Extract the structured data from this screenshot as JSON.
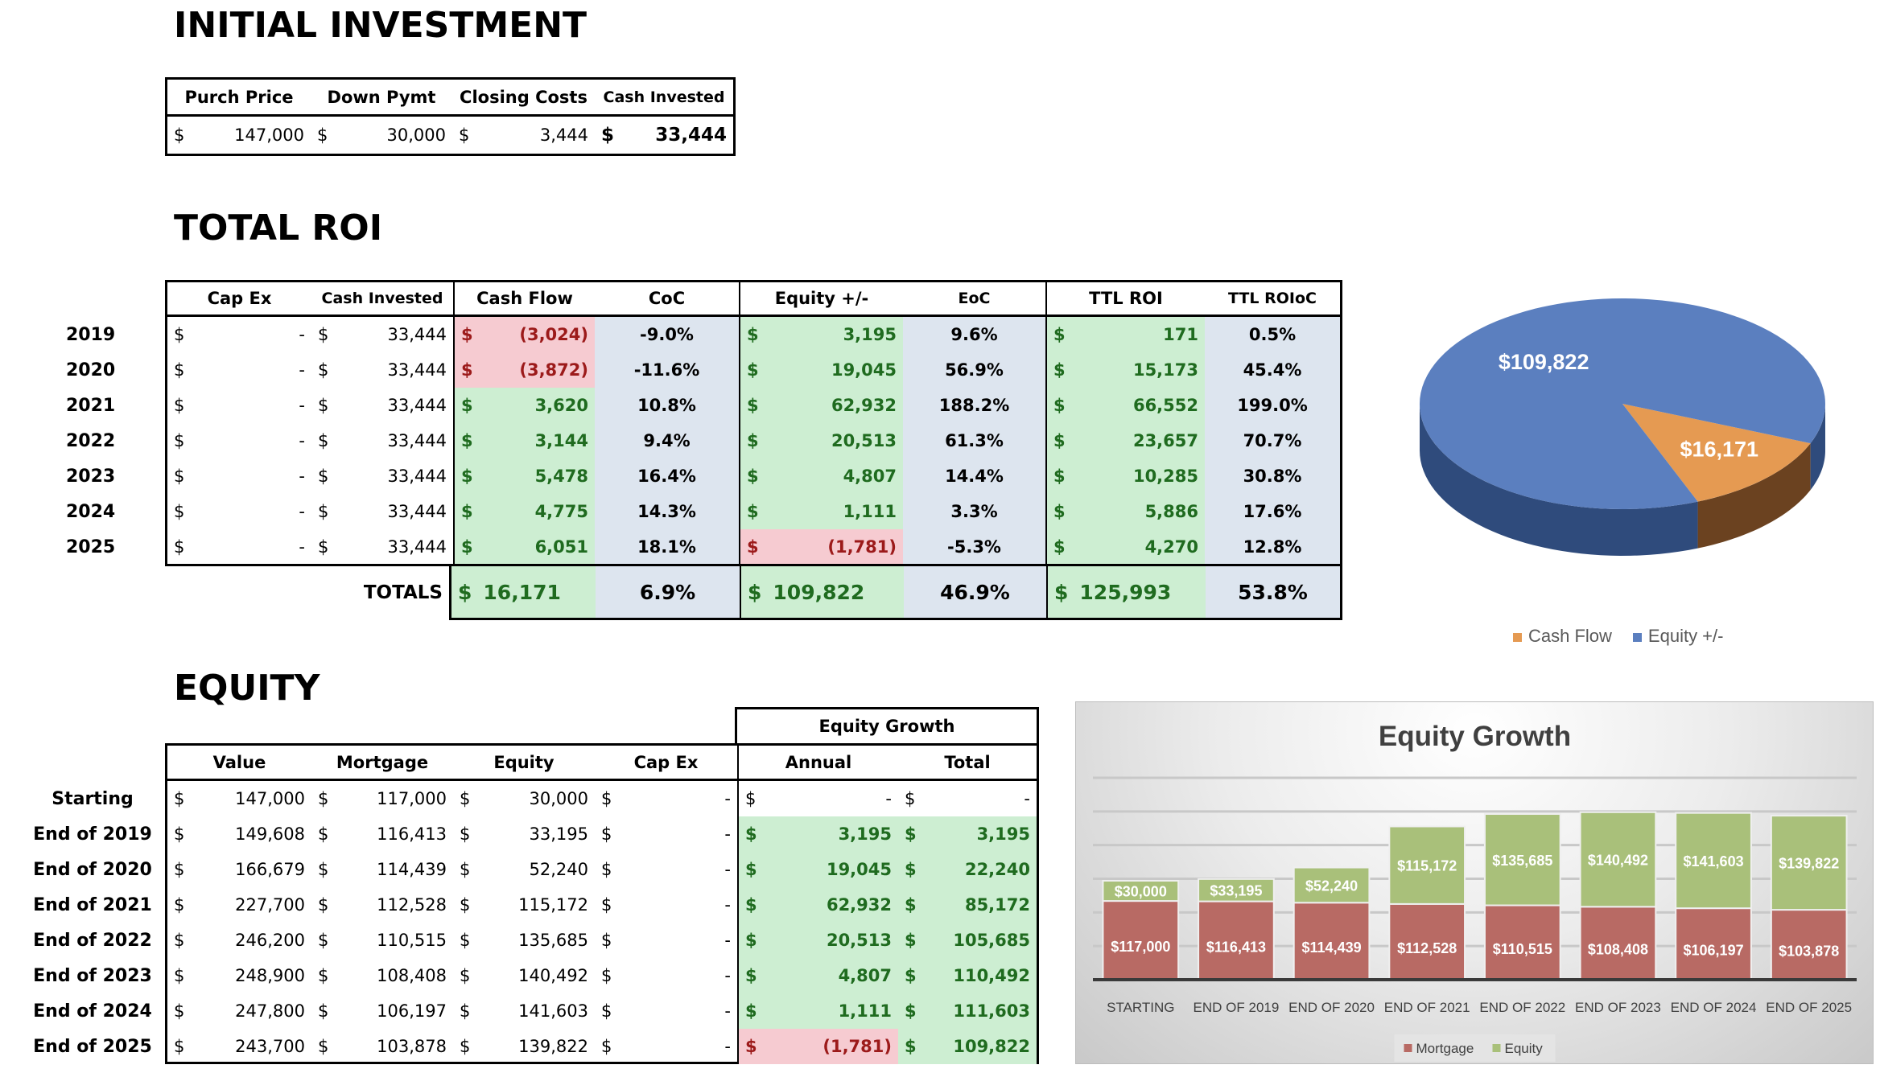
{
  "currency": "$",
  "initial_investment": {
    "title": "INITIAL INVESTMENT",
    "headers": [
      "Purch Price",
      "Down Pymt",
      "Closing Costs",
      "Cash Invested"
    ],
    "values": [
      "147,000",
      "30,000",
      "3,444",
      "33,444"
    ]
  },
  "total_roi": {
    "title": "TOTAL ROI",
    "headers": [
      "Cap Ex",
      "Cash Invested",
      "Cash Flow",
      "CoC",
      "Equity +/-",
      "EoC",
      "TTL ROI",
      "TTL ROIoC"
    ],
    "rows": [
      {
        "year": "2019",
        "cap_ex": "-",
        "cash_invested": "33,444",
        "cash_flow": "(3,024)",
        "coc": "-9.0%",
        "equity": "3,195",
        "eoc": "9.6%",
        "ttl_roi": "171",
        "ttl_roioc": "0.5%"
      },
      {
        "year": "2020",
        "cap_ex": "-",
        "cash_invested": "33,444",
        "cash_flow": "(3,872)",
        "coc": "-11.6%",
        "equity": "19,045",
        "eoc": "56.9%",
        "ttl_roi": "15,173",
        "ttl_roioc": "45.4%"
      },
      {
        "year": "2021",
        "cap_ex": "-",
        "cash_invested": "33,444",
        "cash_flow": "3,620",
        "coc": "10.8%",
        "equity": "62,932",
        "eoc": "188.2%",
        "ttl_roi": "66,552",
        "ttl_roioc": "199.0%"
      },
      {
        "year": "2022",
        "cap_ex": "-",
        "cash_invested": "33,444",
        "cash_flow": "3,144",
        "coc": "9.4%",
        "equity": "20,513",
        "eoc": "61.3%",
        "ttl_roi": "23,657",
        "ttl_roioc": "70.7%"
      },
      {
        "year": "2023",
        "cap_ex": "-",
        "cash_invested": "33,444",
        "cash_flow": "5,478",
        "coc": "16.4%",
        "equity": "4,807",
        "eoc": "14.4%",
        "ttl_roi": "10,285",
        "ttl_roioc": "30.8%"
      },
      {
        "year": "2024",
        "cap_ex": "-",
        "cash_invested": "33,444",
        "cash_flow": "4,775",
        "coc": "14.3%",
        "equity": "1,111",
        "eoc": "3.3%",
        "ttl_roi": "5,886",
        "ttl_roioc": "17.6%"
      },
      {
        "year": "2025",
        "cap_ex": "-",
        "cash_invested": "33,444",
        "cash_flow": "6,051",
        "coc": "18.1%",
        "equity": "(1,781)",
        "eoc": "-5.3%",
        "ttl_roi": "4,270",
        "ttl_roioc": "12.8%"
      }
    ],
    "totals": {
      "label": "TOTALS",
      "cash_flow": "16,171",
      "coc": "6.9%",
      "equity": "109,822",
      "eoc": "46.9%",
      "ttl_roi": "125,993",
      "ttl_roioc": "53.8%"
    }
  },
  "equity": {
    "title": "EQUITY",
    "group_header": "Equity Growth",
    "headers": [
      "Value",
      "Mortgage",
      "Equity",
      "Cap Ex",
      "Annual",
      "Total"
    ],
    "rows": [
      {
        "label": "Starting",
        "value": "147,000",
        "mortgage": "117,000",
        "equity": "30,000",
        "cap_ex": "-",
        "annual": "-",
        "total": "-"
      },
      {
        "label": "End of 2019",
        "value": "149,608",
        "mortgage": "116,413",
        "equity": "33,195",
        "cap_ex": "-",
        "annual": "3,195",
        "total": "3,195"
      },
      {
        "label": "End of 2020",
        "value": "166,679",
        "mortgage": "114,439",
        "equity": "52,240",
        "cap_ex": "-",
        "annual": "19,045",
        "total": "22,240"
      },
      {
        "label": "End of 2021",
        "value": "227,700",
        "mortgage": "112,528",
        "equity": "115,172",
        "cap_ex": "-",
        "annual": "62,932",
        "total": "85,172"
      },
      {
        "label": "End of 2022",
        "value": "246,200",
        "mortgage": "110,515",
        "equity": "135,685",
        "cap_ex": "-",
        "annual": "20,513",
        "total": "105,685"
      },
      {
        "label": "End of 2023",
        "value": "248,900",
        "mortgage": "108,408",
        "equity": "140,492",
        "cap_ex": "-",
        "annual": "4,807",
        "total": "110,492"
      },
      {
        "label": "End of 2024",
        "value": "247,800",
        "mortgage": "106,197",
        "equity": "141,603",
        "cap_ex": "-",
        "annual": "1,111",
        "total": "111,603"
      },
      {
        "label": "End of 2025",
        "value": "243,700",
        "mortgage": "103,878",
        "equity": "139,822",
        "cap_ex": "-",
        "annual": "(1,781)",
        "total": "109,822"
      }
    ]
  },
  "colors": {
    "green_fill": "#cdeed2",
    "blue_fill": "#dde5ef",
    "pink_fill": "#f6cbd1",
    "green_text": "#1f6b1f",
    "red_text": "#9c1a1a"
  },
  "chart_data": [
    {
      "type": "pie",
      "style": "3d",
      "slices": [
        {
          "name": "Cash Flow",
          "value": 16171,
          "label": "$16,171",
          "color": "#e59a52"
        },
        {
          "name": "Equity +/-",
          "value": 109822,
          "label": "$109,822",
          "color": "#5b7fbf"
        }
      ],
      "legend": "bottom"
    },
    {
      "type": "bar",
      "stacked": true,
      "title": "Equity Growth",
      "categories": [
        "STARTING",
        "END OF 2019",
        "END OF 2020",
        "END OF 2021",
        "END OF 2022",
        "END OF 2023",
        "END OF 2024",
        "END OF 2025"
      ],
      "series": [
        {
          "name": "Mortgage",
          "color": "#b86a64",
          "values": [
            117000,
            116413,
            114439,
            112528,
            110515,
            108408,
            106197,
            103878
          ],
          "labels": [
            "$117,000",
            "$116,413",
            "$114,439",
            "$112,528",
            "$110,515",
            "$108,408",
            "$106,197",
            "$103,878"
          ]
        },
        {
          "name": "Equity",
          "color": "#a9c07a",
          "values": [
            30000,
            33195,
            52240,
            115172,
            135685,
            140492,
            141603,
            139822
          ],
          "labels": [
            "$30,000",
            "$33,195",
            "$52,240",
            "$115,172",
            "$135,685",
            "$140,492",
            "$141,603",
            "$139,822"
          ]
        }
      ],
      "ylim": [
        0,
        300000
      ],
      "grid": true,
      "legend": "bottom"
    }
  ]
}
